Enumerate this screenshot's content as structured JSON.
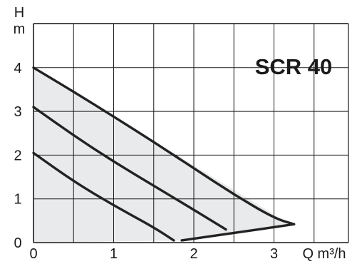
{
  "chart_data": {
    "type": "line",
    "title": "SCR 40",
    "ylabel_top": "H",
    "ylabel_bottom": "m",
    "xlabel": "Q m³/h",
    "xlim": [
      0,
      3.7
    ],
    "ylim": [
      0,
      5
    ],
    "x_ticks": [
      "0",
      "1",
      "2",
      "3"
    ],
    "y_ticks": [
      "0",
      "1",
      "2",
      "3",
      "4"
    ],
    "grid": true,
    "colors": {
      "curve": "#222222",
      "area": "#e9eaeb",
      "grid": "#1a1a1a"
    },
    "operating_area": [
      {
        "x": 0.0,
        "y": 4.0
      },
      {
        "x": 3.2,
        "y": 0.42
      },
      {
        "x": 1.9,
        "y": 0.05
      },
      {
        "x": 0.0,
        "y": 0.0
      }
    ],
    "series": [
      {
        "values": [
          {
            "x": 0.0,
            "y": 4.0
          },
          {
            "x": 0.5,
            "y": 3.45
          },
          {
            "x": 1.0,
            "y": 2.88
          },
          {
            "x": 1.5,
            "y": 2.3
          },
          {
            "x": 2.0,
            "y": 1.7
          },
          {
            "x": 2.5,
            "y": 1.1
          },
          {
            "x": 3.0,
            "y": 0.56
          },
          {
            "x": 3.25,
            "y": 0.42
          }
        ]
      },
      {
        "values": [
          {
            "x": 0.0,
            "y": 3.1
          },
          {
            "x": 0.5,
            "y": 2.45
          },
          {
            "x": 1.0,
            "y": 1.85
          },
          {
            "x": 1.5,
            "y": 1.3
          },
          {
            "x": 2.0,
            "y": 0.75
          },
          {
            "x": 2.4,
            "y": 0.3
          }
        ]
      },
      {
        "values": [
          {
            "x": 0.0,
            "y": 2.05
          },
          {
            "x": 0.5,
            "y": 1.4
          },
          {
            "x": 1.0,
            "y": 0.85
          },
          {
            "x": 1.5,
            "y": 0.35
          },
          {
            "x": 1.75,
            "y": 0.05
          }
        ]
      },
      {
        "values": [
          {
            "x": 1.85,
            "y": 0.05
          },
          {
            "x": 2.5,
            "y": 0.22
          },
          {
            "x": 3.25,
            "y": 0.42
          }
        ]
      }
    ]
  }
}
